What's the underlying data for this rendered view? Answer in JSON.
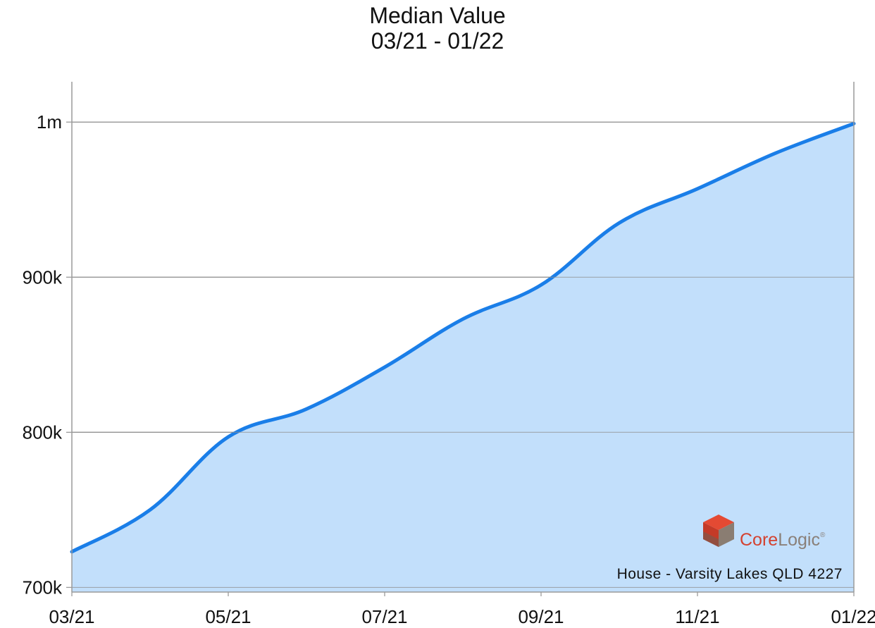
{
  "chart_data": {
    "type": "area",
    "title": "Median Value",
    "subtitle": "03/21 - 01/22",
    "xlabel": "",
    "ylabel": "",
    "x": [
      "03/21",
      "04/21",
      "05/21",
      "06/21",
      "07/21",
      "08/21",
      "09/21",
      "10/21",
      "11/21",
      "12/21",
      "01/22"
    ],
    "series": [
      {
        "values": [
          723000,
          750000,
          797000,
          815000,
          842000,
          873000,
          895000,
          935000,
          957000,
          980000,
          999000
        ]
      }
    ],
    "ylim": [
      697000,
      1026000
    ],
    "yticks": [
      700000,
      800000,
      900000,
      1000000
    ],
    "ytick_labels": [
      "700k",
      "800k",
      "900k",
      "1m"
    ],
    "xticks": [
      "03/21",
      "05/21",
      "07/21",
      "09/21",
      "11/21",
      "01/22"
    ],
    "grid": true,
    "line_color": "#1a7ee8",
    "fill_color": "#c2dffb",
    "annotation": "House - Varsity Lakes QLD 4227",
    "brand": {
      "name_part1": "Core",
      "name_part2": "Logic",
      "trademark": "®",
      "icon": "corelogic-cube-logo"
    }
  }
}
